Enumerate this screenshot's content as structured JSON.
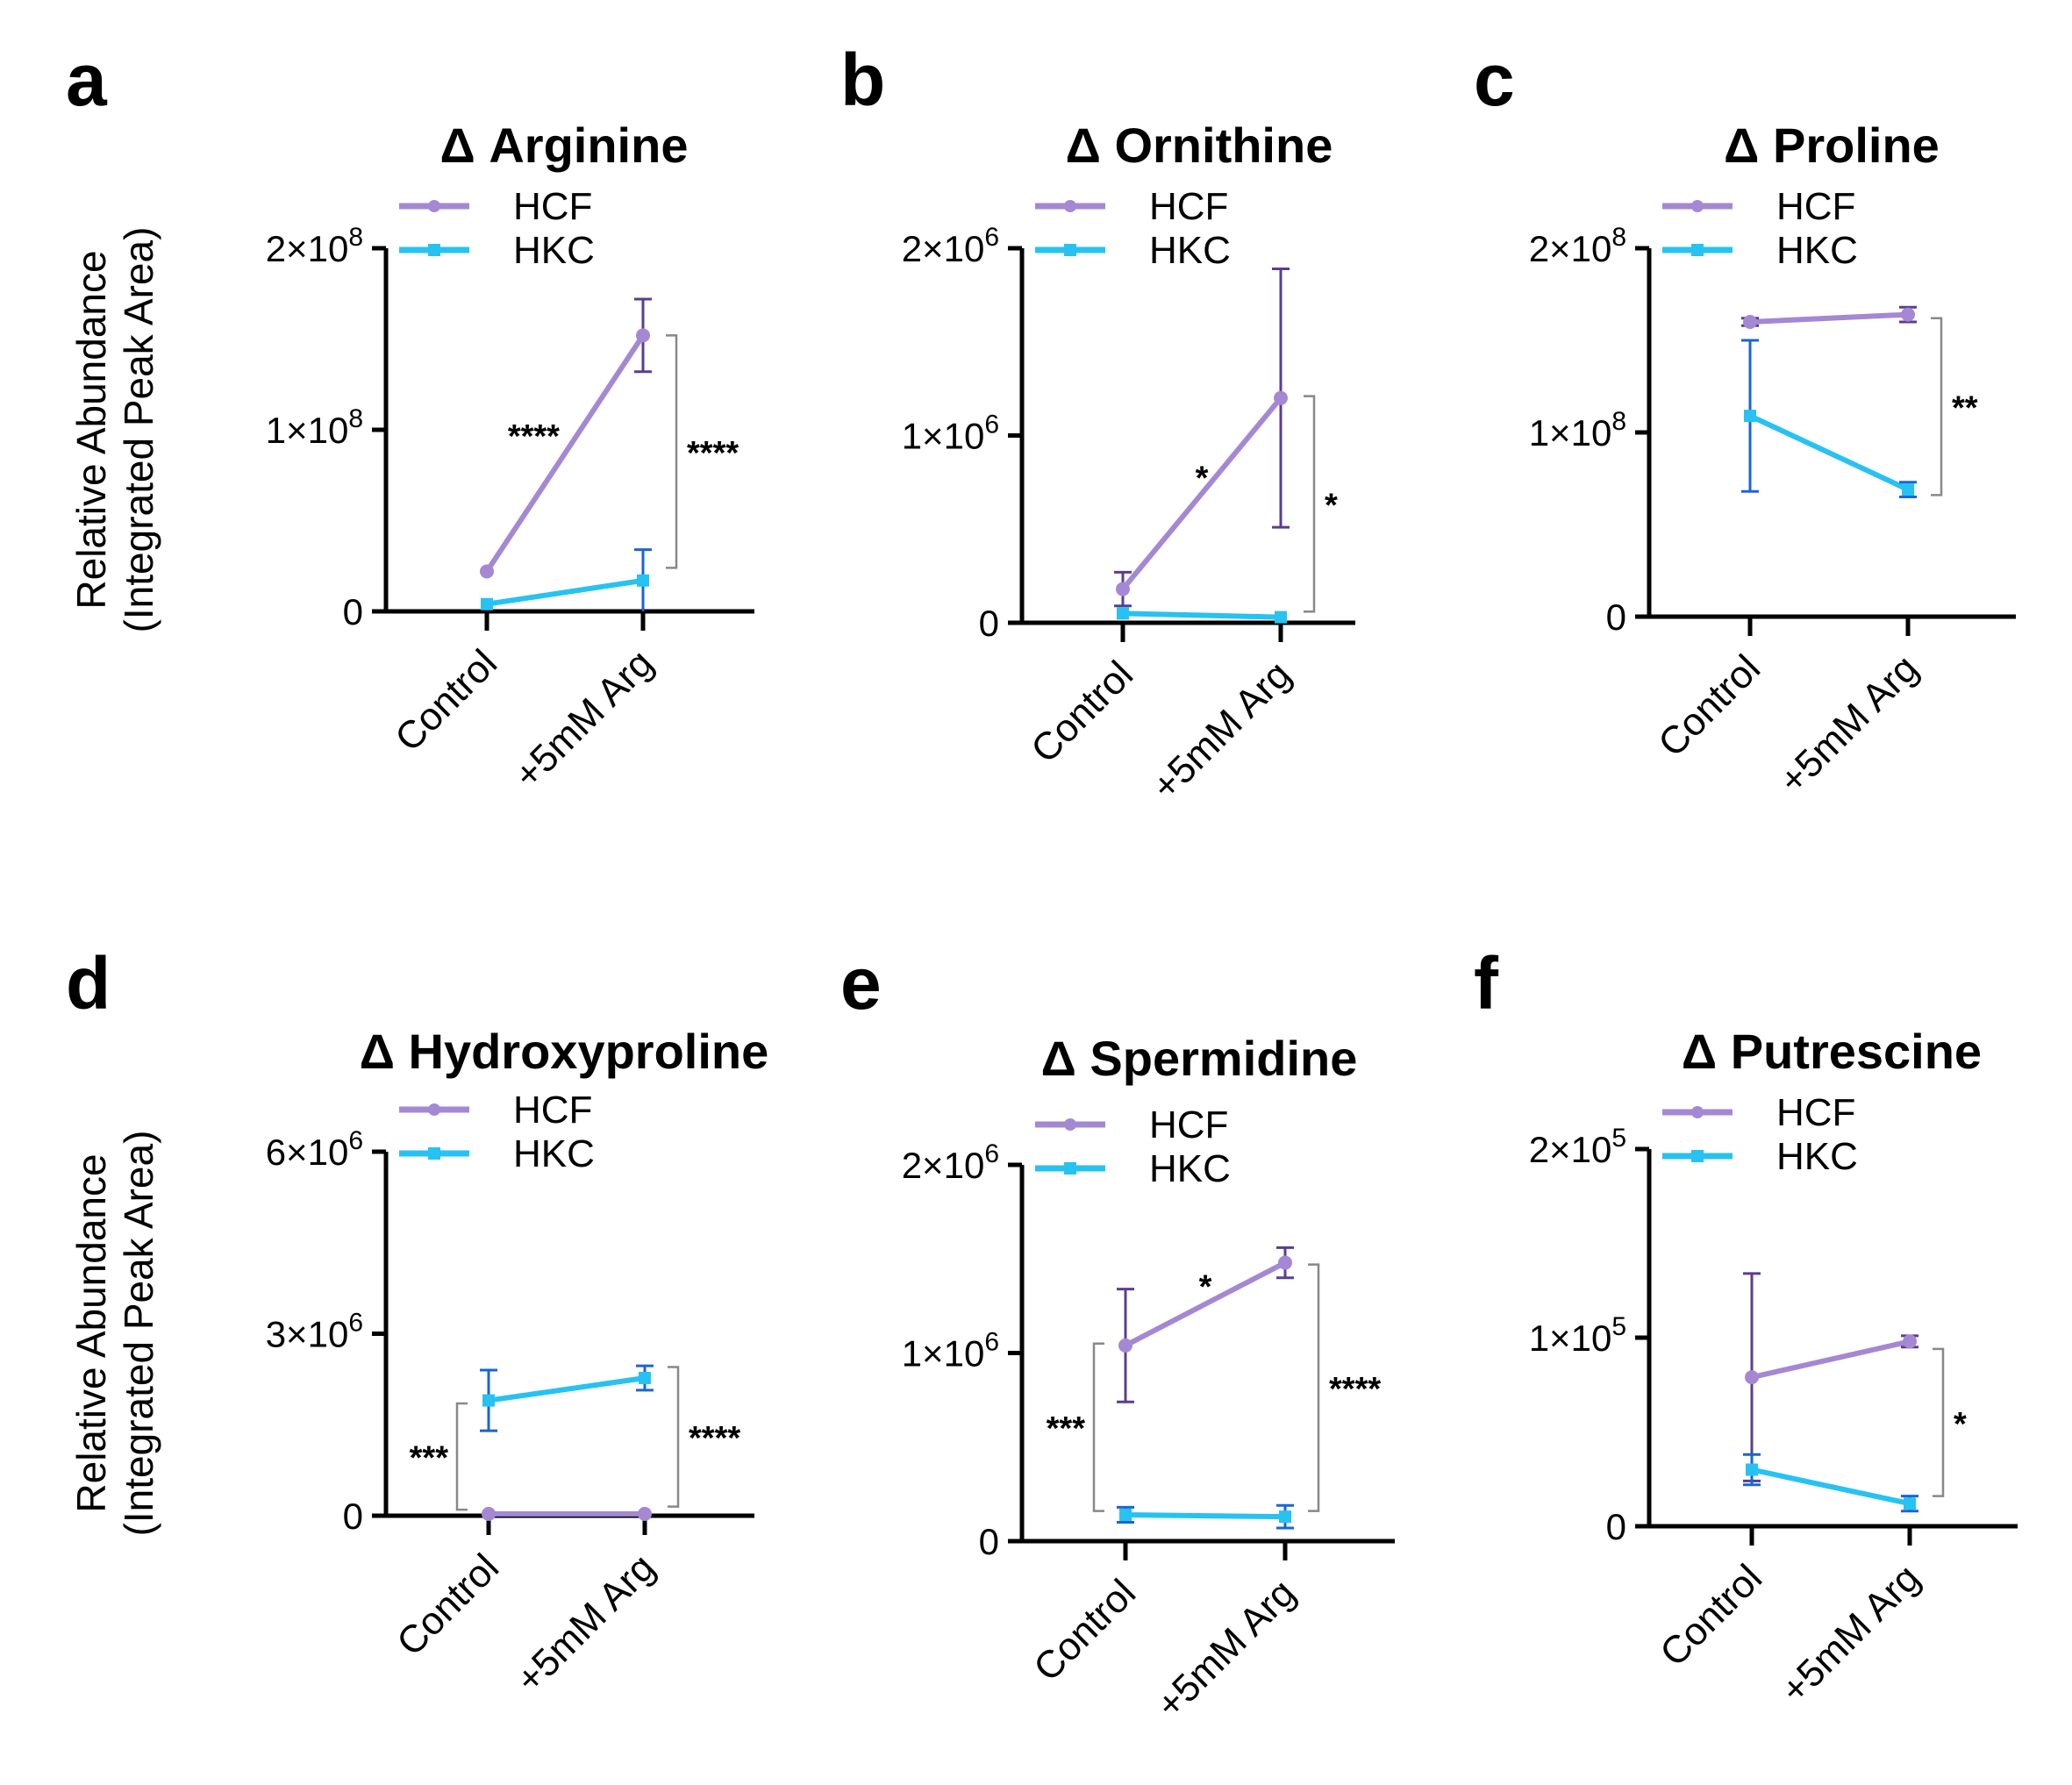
{
  "figure": {
    "y_axis_label_line1": "Relative Abundance",
    "y_axis_label_line2": "(Integrated Peak Area)"
  },
  "colors": {
    "HCF": "#a488d4",
    "HCF_err": "#5b3d8f",
    "HKC": "#27c2f2",
    "HKC_err": "#1a64d6",
    "bracket": "#888888"
  },
  "chart_data": [
    {
      "id": "a",
      "letter": "a",
      "type": "line",
      "title": "Δ Arginine",
      "categories": [
        "Control",
        "+5mM Arg"
      ],
      "ylim": [
        0,
        200000000
      ],
      "yticks": [
        {
          "value": 0,
          "mant": "0"
        },
        {
          "value": 100000000,
          "mant": "1×10",
          "exp": "8"
        },
        {
          "value": 200000000,
          "mant": "2×10",
          "exp": "8"
        }
      ],
      "series": [
        {
          "name": "HCF",
          "values": [
            22000000,
            152000000
          ],
          "err": [
            0,
            20000000
          ]
        },
        {
          "name": "HKC",
          "values": [
            4000000,
            17000000
          ],
          "err": [
            0,
            17000000
          ]
        }
      ],
      "annotations": [
        {
          "text": "****",
          "kind": "within",
          "x": 0.3,
          "y": 97000000
        },
        {
          "text": "****",
          "kind": "bracket",
          "top": 152000000,
          "bottom": 24000000,
          "side": "right"
        }
      ]
    },
    {
      "id": "b",
      "letter": "b",
      "type": "line",
      "title": "Δ Ornithine",
      "categories": [
        "Control",
        "+5mM Arg"
      ],
      "ylim": [
        0,
        2000000
      ],
      "yticks": [
        {
          "value": 0,
          "mant": "0"
        },
        {
          "value": 1000000,
          "mant": "1×10",
          "exp": "6"
        },
        {
          "value": 2000000,
          "mant": "2×10",
          "exp": "6"
        }
      ],
      "series": [
        {
          "name": "HCF",
          "values": [
            180000,
            1200000
          ],
          "err": [
            90000,
            690000
          ]
        },
        {
          "name": "HKC",
          "values": [
            50000,
            30000
          ],
          "err": [
            0,
            0
          ]
        }
      ],
      "annotations": [
        {
          "text": "*",
          "kind": "within",
          "x": 0.5,
          "y": 780000
        },
        {
          "text": "*",
          "kind": "bracket",
          "top": 1210000,
          "bottom": 60000,
          "side": "right"
        }
      ]
    },
    {
      "id": "c",
      "letter": "c",
      "type": "line",
      "title": "Δ Proline",
      "categories": [
        "Control",
        "+5mM Arg"
      ],
      "ylim": [
        0,
        200000000
      ],
      "yticks": [
        {
          "value": 0,
          "mant": "0"
        },
        {
          "value": 100000000,
          "mant": "1×10",
          "exp": "8"
        },
        {
          "value": 200000000,
          "mant": "2×10",
          "exp": "8"
        }
      ],
      "series": [
        {
          "name": "HCF",
          "values": [
            160000000,
            164000000
          ],
          "err": [
            2000000,
            4000000
          ]
        },
        {
          "name": "HKC",
          "values": [
            109000000,
            69000000
          ],
          "err": [
            41000000,
            4000000
          ]
        }
      ],
      "annotations": [
        {
          "text": "**",
          "kind": "bracket",
          "top": 162000000,
          "bottom": 66000000,
          "side": "right"
        }
      ]
    },
    {
      "id": "d",
      "letter": "d",
      "type": "line",
      "title": "Δ Hydroxyproline",
      "categories": [
        "Control",
        "+5mM Arg"
      ],
      "ylim": [
        0,
        6000000
      ],
      "yticks": [
        {
          "value": 0,
          "mant": "0"
        },
        {
          "value": 3000000,
          "mant": "3×10",
          "exp": "6"
        },
        {
          "value": 6000000,
          "mant": "6×10",
          "exp": "6"
        }
      ],
      "series": [
        {
          "name": "HCF",
          "values": [
            30000,
            30000
          ],
          "err": [
            0,
            0
          ]
        },
        {
          "name": "HKC",
          "values": [
            1900000,
            2270000
          ],
          "err": [
            500000,
            200000
          ]
        }
      ],
      "annotations": [
        {
          "text": "***",
          "kind": "bracket",
          "top": 1850000,
          "bottom": 100000,
          "side": "left"
        },
        {
          "text": "****",
          "kind": "bracket",
          "top": 2450000,
          "bottom": 150000,
          "side": "right"
        }
      ]
    },
    {
      "id": "e",
      "letter": "e",
      "type": "line",
      "title": "Δ Spermidine",
      "categories": [
        "Control",
        "+5mM Arg"
      ],
      "ylim": [
        0,
        2000000
      ],
      "yticks": [
        {
          "value": 0,
          "mant": "0"
        },
        {
          "value": 1000000,
          "mant": "1×10",
          "exp": "6"
        },
        {
          "value": 2000000,
          "mant": "2×10",
          "exp": "6"
        }
      ],
      "series": [
        {
          "name": "HCF",
          "values": [
            1040000,
            1480000
          ],
          "err": [
            300000,
            80000
          ]
        },
        {
          "name": "HKC",
          "values": [
            140000,
            130000
          ],
          "err": [
            40000,
            60000
          ]
        }
      ],
      "annotations": [
        {
          "text": "*",
          "kind": "within",
          "x": 0.5,
          "y": 1360000
        },
        {
          "text": "***",
          "kind": "bracket",
          "top": 1050000,
          "bottom": 160000,
          "side": "left"
        },
        {
          "text": "****",
          "kind": "bracket",
          "top": 1470000,
          "bottom": 160000,
          "side": "right"
        }
      ]
    },
    {
      "id": "f",
      "letter": "f",
      "type": "line",
      "title": "Δ Putrescine",
      "categories": [
        "Control",
        "+5mM Arg"
      ],
      "ylim": [
        0,
        200000
      ],
      "yticks": [
        {
          "value": 0,
          "mant": "0"
        },
        {
          "value": 100000,
          "mant": "1×10",
          "exp": "5"
        },
        {
          "value": 200000,
          "mant": "2×10",
          "exp": "5"
        }
      ],
      "series": [
        {
          "name": "HCF",
          "values": [
            79000,
            98000
          ],
          "err": [
            55000,
            3000
          ]
        },
        {
          "name": "HKC",
          "values": [
            30000,
            12000
          ],
          "err": [
            8000,
            4000
          ]
        }
      ],
      "annotations": [
        {
          "text": "*",
          "kind": "bracket",
          "top": 94000,
          "bottom": 16000,
          "side": "right"
        }
      ]
    }
  ]
}
